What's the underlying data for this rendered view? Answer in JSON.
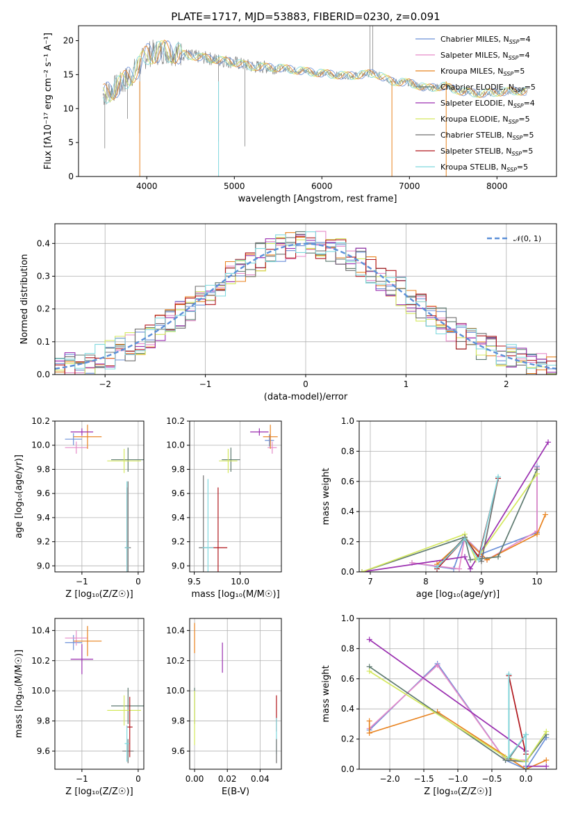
{
  "title": "PLATE=1717, MJD=53883, FIBERID=0230, z=0.091",
  "model_colors": [
    "#6a8fd8",
    "#e58ac8",
    "#e8821e",
    "#5e7a70",
    "#9a2eb0",
    "#d4e85c",
    "#6f6f6f",
    "#b0161c",
    "#7ed8de"
  ],
  "chart_data": [
    {
      "type": "line",
      "panel": "spectrum",
      "xlabel": "wavelength [Angstrom, rest frame]",
      "ylabel": "Flux [fλ10⁻¹⁷ erg cm⁻² s⁻¹ A⁻¹]",
      "xlim": [
        3220,
        8680
      ],
      "ylim": [
        0,
        22.2
      ],
      "xticks": [
        4000,
        5000,
        6000,
        7000,
        8000
      ],
      "yticks": [
        0,
        5,
        10,
        15,
        20
      ],
      "legend_position": "top-right",
      "legend": [
        {
          "name": "Chabrier MILES, N",
          "sub": "SSP",
          "tail": "=4"
        },
        {
          "name": "Salpeter MILES, N",
          "sub": "SSP",
          "tail": "=4"
        },
        {
          "name": "Kroupa MILES, N",
          "sub": "SSP",
          "tail": "=5"
        },
        {
          "name": "Chabrier ELODIE, N",
          "sub": "SSP",
          "tail": "=5"
        },
        {
          "name": "Salpeter ELODIE, N",
          "sub": "SSP",
          "tail": "=4"
        },
        {
          "name": "Kroupa ELODIE, N",
          "sub": "SSP",
          "tail": "=5"
        },
        {
          "name": "Chabrier STELIB, N",
          "sub": "SSP",
          "tail": "=5"
        },
        {
          "name": "Salpeter STELIB, N",
          "sub": "SSP",
          "tail": "=5"
        },
        {
          "name": "Kroupa STELIB, N",
          "sub": "SSP",
          "tail": "=5"
        }
      ],
      "continuum": [
        {
          "x": 3500,
          "y": 12.0
        },
        {
          "x": 3700,
          "y": 13.5
        },
        {
          "x": 3900,
          "y": 16.0
        },
        {
          "x": 4000,
          "y": 18.0
        },
        {
          "x": 4200,
          "y": 18.5
        },
        {
          "x": 4500,
          "y": 17.8
        },
        {
          "x": 4800,
          "y": 17.2
        },
        {
          "x": 5000,
          "y": 16.8
        },
        {
          "x": 5200,
          "y": 16.2
        },
        {
          "x": 5500,
          "y": 16.0
        },
        {
          "x": 5800,
          "y": 15.5
        },
        {
          "x": 6000,
          "y": 15.2
        },
        {
          "x": 6300,
          "y": 14.8
        },
        {
          "x": 6600,
          "y": 15.2
        },
        {
          "x": 6800,
          "y": 14.0
        },
        {
          "x": 7000,
          "y": 13.8
        },
        {
          "x": 7200,
          "y": 13.0
        },
        {
          "x": 7400,
          "y": 13.3
        },
        {
          "x": 7600,
          "y": 12.5
        },
        {
          "x": 7800,
          "y": 12.2
        },
        {
          "x": 8000,
          "y": 12.4
        },
        {
          "x": 8200,
          "y": 12.6
        },
        {
          "x": 8350,
          "y": 12.5
        }
      ]
    },
    {
      "type": "line",
      "panel": "residual-distribution",
      "xlabel": "(data-model)/error",
      "ylabel": "Normed distribution",
      "xlim": [
        -2.5,
        2.5
      ],
      "ylim": [
        0,
        0.46
      ],
      "xticks": [
        -2,
        -1,
        0,
        1,
        2
      ],
      "yticks": [
        0.0,
        0.1,
        0.2,
        0.3,
        0.4
      ],
      "legend_position": "top-right",
      "reference_curve": {
        "name": "𝒩(0, 1)",
        "mean": 0,
        "sigma": 1
      }
    },
    {
      "type": "scatter",
      "panel": "age-vs-metallicity",
      "xlabel": "Z [log₁₀(Z/Z☉)]",
      "ylabel": "age  [log₁₀(age/yr)]",
      "xlim": [
        -1.48,
        0.1
      ],
      "ylim": [
        8.95,
        10.2
      ],
      "xticks": [
        -1,
        0
      ],
      "yticks": [
        9.0,
        9.2,
        9.4,
        9.6,
        9.8,
        10.0,
        10.2
      ],
      "points": [
        {
          "series": 0,
          "x": -1.15,
          "y": 10.05,
          "xerr": 0.15,
          "yerr": 0.05
        },
        {
          "series": 1,
          "x": -1.1,
          "y": 9.98,
          "xerr": 0.2,
          "yerr": 0.05
        },
        {
          "series": 2,
          "x": -0.9,
          "y": 10.07,
          "xerr": 0.25,
          "yerr": 0.1
        },
        {
          "series": 3,
          "x": -0.18,
          "y": 9.88,
          "xerr": 0.3,
          "yerr": 0.1
        },
        {
          "series": 4,
          "x": -1.0,
          "y": 10.11,
          "xerr": 0.2,
          "yerr": 0.03
        },
        {
          "series": 5,
          "x": -0.25,
          "y": 9.87,
          "xerr": 0.3,
          "yerr": 0.1
        },
        {
          "series": 6,
          "x": -0.18,
          "y": 9.15,
          "xerr": 0.05,
          "yerr": 0.55
        },
        {
          "series": 7,
          "x": -0.2,
          "y": 9.15,
          "xerr": 0.03,
          "yerr": 0.5
        },
        {
          "series": 8,
          "x": -0.2,
          "y": 9.15,
          "xerr": 0.04,
          "yerr": 0.55
        }
      ]
    },
    {
      "type": "scatter",
      "panel": "age-vs-mass",
      "xlabel": "mass [log₁₀(M/M☉)]",
      "ylabel": "",
      "xlim": [
        9.45,
        10.45
      ],
      "ylim": [
        8.95,
        10.2
      ],
      "xticks": [
        9.5,
        10.0
      ],
      "yticks": [
        9.0,
        9.2,
        9.4,
        9.6,
        9.8,
        10.0,
        10.2
      ],
      "points": [
        {
          "series": 0,
          "x": 10.32,
          "y": 10.04,
          "xerr": 0.05,
          "yerr": 0.05
        },
        {
          "series": 1,
          "x": 10.35,
          "y": 9.98,
          "xerr": 0.05,
          "yerr": 0.05
        },
        {
          "series": 2,
          "x": 10.33,
          "y": 10.07,
          "xerr": 0.08,
          "yerr": 0.1
        },
        {
          "series": 3,
          "x": 9.9,
          "y": 9.88,
          "xerr": 0.1,
          "yerr": 0.1
        },
        {
          "series": 4,
          "x": 10.21,
          "y": 10.11,
          "xerr": 0.1,
          "yerr": 0.03
        },
        {
          "series": 5,
          "x": 9.87,
          "y": 9.87,
          "xerr": 0.1,
          "yerr": 0.1
        },
        {
          "series": 6,
          "x": 9.6,
          "y": 9.15,
          "xerr": 0.05,
          "yerr": 0.6
        },
        {
          "series": 7,
          "x": 9.76,
          "y": 9.15,
          "xerr": 0.1,
          "yerr": 0.5
        },
        {
          "series": 8,
          "x": 9.65,
          "y": 9.15,
          "xerr": 0.06,
          "yerr": 0.57
        }
      ]
    },
    {
      "type": "line",
      "panel": "mass-weight-vs-age",
      "xlabel": "age  [log₁₀(age/yr)]",
      "ylabel": "mass weight",
      "xlim": [
        6.8,
        10.35
      ],
      "ylim": [
        0,
        1.0
      ],
      "xticks": [
        7,
        8,
        9,
        10
      ],
      "yticks": [
        0.0,
        0.2,
        0.4,
        0.6,
        0.8,
        1.0
      ],
      "series": [
        {
          "name": "Chabrier MILES",
          "points": [
            [
              7.75,
              0.06
            ],
            [
              8.5,
              0.02
            ],
            [
              8.7,
              0.23
            ],
            [
              9.0,
              0.12
            ],
            [
              10.0,
              0.26
            ],
            [
              10.0,
              0.7
            ]
          ]
        },
        {
          "name": "Salpeter MILES",
          "points": [
            [
              7.75,
              0.06
            ],
            [
              8.6,
              0.02
            ],
            [
              8.7,
              0.23
            ],
            [
              9.1,
              0.08
            ],
            [
              10.0,
              0.27
            ],
            [
              10.0,
              0.69
            ]
          ]
        },
        {
          "name": "Kroupa MILES",
          "points": [
            [
              8.2,
              0.05
            ],
            [
              8.7,
              0.22
            ],
            [
              9.1,
              0.08
            ],
            [
              10.0,
              0.25
            ],
            [
              10.15,
              0.38
            ]
          ]
        },
        {
          "name": "Chabrier ELODIE",
          "points": [
            [
              6.85,
              0.0
            ],
            [
              8.7,
              0.23
            ],
            [
              8.8,
              0.08
            ],
            [
              9.3,
              0.1
            ],
            [
              10.0,
              0.68
            ]
          ]
        },
        {
          "name": "Salpeter ELODIE",
          "points": [
            [
              6.85,
              0.0
            ],
            [
              8.7,
              0.1
            ],
            [
              8.8,
              0.02
            ],
            [
              10.2,
              0.86
            ]
          ]
        },
        {
          "name": "Kroupa ELODIE",
          "points": [
            [
              6.85,
              0.0
            ],
            [
              8.7,
              0.25
            ],
            [
              8.9,
              0.08
            ],
            [
              10.0,
              0.65
            ]
          ]
        },
        {
          "name": "Chabrier STELIB",
          "points": [
            [
              8.2,
              0.03
            ],
            [
              8.7,
              0.23
            ],
            [
              9.0,
              0.07
            ],
            [
              9.3,
              0.62
            ]
          ]
        },
        {
          "name": "Salpeter STELIB",
          "points": [
            [
              8.2,
              0.02
            ],
            [
              8.7,
              0.22
            ],
            [
              8.95,
              0.1
            ],
            [
              9.3,
              0.62
            ]
          ]
        },
        {
          "name": "Kroupa STELIB",
          "points": [
            [
              8.2,
              0.03
            ],
            [
              8.7,
              0.22
            ],
            [
              8.95,
              0.08
            ],
            [
              9.3,
              0.63
            ]
          ]
        }
      ]
    },
    {
      "type": "scatter",
      "panel": "mass-vs-metallicity",
      "xlabel": "Z [log₁₀(Z/Z☉)]",
      "ylabel": "mass [log₁₀(M/M☉)]",
      "xlim": [
        -1.48,
        0.1
      ],
      "ylim": [
        9.48,
        10.48
      ],
      "xticks": [
        -1,
        0
      ],
      "yticks": [
        9.6,
        9.8,
        10.0,
        10.2,
        10.4
      ],
      "points": [
        {
          "series": 0,
          "x": -1.15,
          "y": 10.32,
          "xerr": 0.15,
          "yerr": 0.05
        },
        {
          "series": 1,
          "x": -1.1,
          "y": 10.35,
          "xerr": 0.2,
          "yerr": 0.05
        },
        {
          "series": 2,
          "x": -0.9,
          "y": 10.33,
          "xerr": 0.25,
          "yerr": 0.1
        },
        {
          "series": 3,
          "x": -0.18,
          "y": 9.9,
          "xerr": 0.3,
          "yerr": 0.12
        },
        {
          "series": 4,
          "x": -1.0,
          "y": 10.21,
          "xerr": 0.2,
          "yerr": 0.1
        },
        {
          "series": 5,
          "x": -0.25,
          "y": 9.87,
          "xerr": 0.3,
          "yerr": 0.1
        },
        {
          "series": 6,
          "x": -0.18,
          "y": 9.6,
          "xerr": 0.1,
          "yerr": 0.08
        },
        {
          "series": 7,
          "x": -0.15,
          "y": 9.76,
          "xerr": 0.05,
          "yerr": 0.2
        },
        {
          "series": 8,
          "x": -0.2,
          "y": 9.65,
          "xerr": 0.04,
          "yerr": 0.12
        }
      ]
    },
    {
      "type": "scatter",
      "panel": "mass-vs-ebv",
      "xlabel": "E(B-V)",
      "ylabel": "",
      "xlim": [
        -0.003,
        0.053
      ],
      "ylim": [
        9.48,
        10.48
      ],
      "xticks": [
        0.0,
        0.02,
        0.04
      ],
      "yticks": [
        9.6,
        9.8,
        10.0,
        10.2,
        10.4
      ],
      "points": [
        {
          "series": 2,
          "x": 0.0,
          "y": 10.35,
          "xerr": 0.0,
          "yerr": 0.1
        },
        {
          "series": 3,
          "x": 0.0,
          "y": 9.9,
          "xerr": 0.0,
          "yerr": 0.12
        },
        {
          "series": 5,
          "x": 0.0,
          "y": 9.82,
          "xerr": 0.0,
          "yerr": 0.18
        },
        {
          "series": 4,
          "x": 0.017,
          "y": 10.22,
          "xerr": 0.0,
          "yerr": 0.1
        },
        {
          "series": 7,
          "x": 0.05,
          "y": 9.85,
          "xerr": 0.0,
          "yerr": 0.12
        },
        {
          "series": 8,
          "x": 0.05,
          "y": 9.7,
          "xerr": 0.0,
          "yerr": 0.12
        },
        {
          "series": 6,
          "x": 0.05,
          "y": 9.6,
          "xerr": 0.0,
          "yerr": 0.08
        }
      ]
    },
    {
      "type": "line",
      "panel": "mass-weight-vs-metallicity",
      "xlabel": "Z [log₁₀(Z/Z☉)]",
      "ylabel": "mass weight",
      "xlim": [
        -2.45,
        0.45
      ],
      "ylim": [
        0,
        1.0
      ],
      "xticks": [
        -2.0,
        -1.5,
        -1.0,
        -0.5,
        0.0
      ],
      "yticks": [
        0.0,
        0.2,
        0.4,
        0.6,
        0.8,
        1.0
      ],
      "series": [
        {
          "name": "Chabrier MILES",
          "points": [
            [
              -2.3,
              0.26
            ],
            [
              -1.3,
              0.7
            ],
            [
              -0.3,
              0.06
            ],
            [
              0.0,
              0.0
            ],
            [
              0.3,
              0.21
            ]
          ]
        },
        {
          "name": "Salpeter MILES",
          "points": [
            [
              -2.3,
              0.27
            ],
            [
              -1.3,
              0.69
            ],
            [
              -0.3,
              0.06
            ],
            [
              0.0,
              0.06
            ]
          ]
        },
        {
          "name": "Kroupa MILES",
          "points": [
            [
              -2.3,
              0.32
            ],
            [
              -2.3,
              0.24
            ],
            [
              -1.3,
              0.38
            ],
            [
              0.0,
              0.0
            ],
            [
              0.3,
              0.06
            ]
          ]
        },
        {
          "name": "Chabrier ELODIE",
          "points": [
            [
              -2.3,
              0.68
            ],
            [
              -0.3,
              0.06
            ],
            [
              0.0,
              0.05
            ],
            [
              0.3,
              0.23
            ]
          ]
        },
        {
          "name": "Salpeter ELODIE",
          "points": [
            [
              -2.3,
              0.86
            ],
            [
              0.0,
              0.12
            ],
            [
              0.0,
              0.02
            ],
            [
              0.3,
              0.02
            ]
          ]
        },
        {
          "name": "Kroupa ELODIE",
          "points": [
            [
              -2.3,
              0.65
            ],
            [
              -0.3,
              0.08
            ],
            [
              0.0,
              0.05
            ],
            [
              0.3,
              0.25
            ]
          ]
        },
        {
          "name": "Chabrier STELIB",
          "points": [
            [
              -0.25,
              0.62
            ],
            [
              -0.25,
              0.07
            ],
            [
              0.0,
              0.23
            ],
            [
              0.0,
              0.0
            ]
          ]
        },
        {
          "name": "Salpeter STELIB",
          "points": [
            [
              -0.25,
              0.62
            ],
            [
              0.0,
              0.1
            ],
            [
              0.0,
              0.0
            ]
          ]
        },
        {
          "name": "Kroupa STELIB",
          "points": [
            [
              -0.25,
              0.63
            ],
            [
              -0.25,
              0.08
            ],
            [
              0.0,
              0.23
            ],
            [
              0.0,
              0.0
            ]
          ]
        }
      ]
    }
  ]
}
